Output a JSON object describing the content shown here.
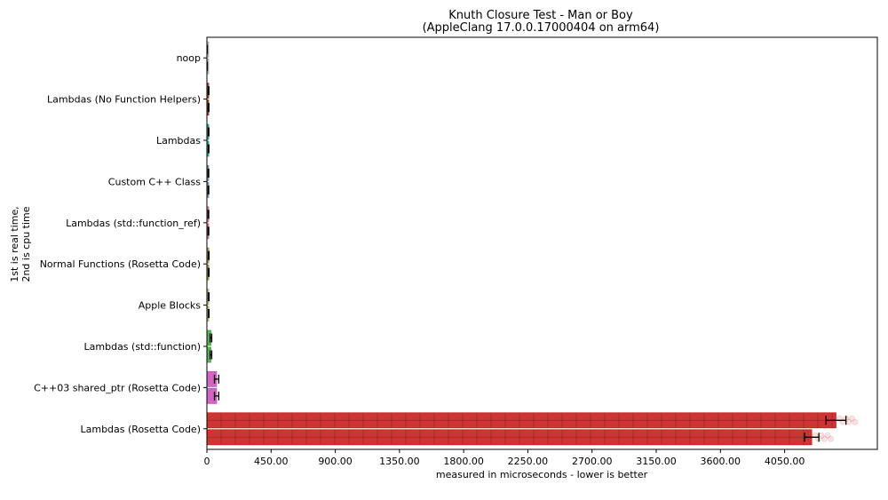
{
  "chart_data": {
    "type": "bar",
    "orientation": "horizontal",
    "title": "Knuth Closure Test - Man or Boy",
    "subtitle": "(AppleClang 17.0.0.17000404 on arm64)",
    "xlabel": "measured in microseconds - lower is better",
    "ylabel_line1": "1st is real time,",
    "ylabel_line2": "2nd is cpu time",
    "xlim": [
      0,
      4700
    ],
    "xticks": [
      0,
      450,
      900,
      1350,
      1800,
      2250,
      2700,
      3150,
      3600,
      4050
    ],
    "xtick_labels": [
      "0",
      "450.00",
      "900.00",
      "1350.00",
      "1800.00",
      "2250.00",
      "2700.00",
      "3150.00",
      "3600.00",
      "4050.00"
    ],
    "grid": false,
    "categories": [
      "noop",
      "Lambdas (No Function Helpers)",
      "Lambdas",
      "Custom C++ Class",
      "Lambdas (std::function_ref)",
      "Normal Functions (Rosetta Code)",
      "Apple Blocks",
      "Lambdas (std::function)",
      "C++03 shared_ptr (Rosetta Code)",
      "Lambdas (Rosetta Code)"
    ],
    "colors": [
      "#b0b0b0",
      "#8c3a1f",
      "#1a9a86",
      "#6a8fa8",
      "#cc7080",
      "#a0884a",
      "#a8b878",
      "#4aa84a",
      "#cc55bb",
      "#c81e1e"
    ],
    "series": [
      {
        "name": "real time",
        "values": [
          2,
          12,
          12,
          11,
          11,
          13,
          13,
          28,
          68,
          4410
        ],
        "errors": [
          1,
          2,
          2,
          2,
          2,
          2,
          2,
          6,
          15,
          70
        ]
      },
      {
        "name": "cpu time",
        "values": [
          2,
          12,
          12,
          11,
          11,
          13,
          13,
          28,
          68,
          4240
        ],
        "errors": [
          1,
          2,
          2,
          2,
          2,
          2,
          2,
          6,
          15,
          50
        ]
      }
    ]
  }
}
